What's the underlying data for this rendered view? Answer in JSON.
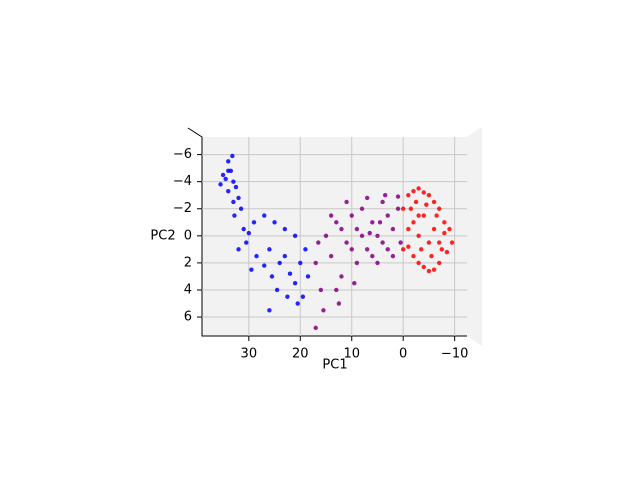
{
  "chart_data": {
    "type": "scatter",
    "xlabel": "PC1",
    "ylabel": "PC2",
    "xlim": [
      39.1,
      -12.4
    ],
    "ylim": [
      -7.3,
      7.4
    ],
    "xticks": [
      30,
      20,
      10,
      0,
      {
        "value": -10,
        "label": "−10"
      }
    ],
    "yticks": [
      {
        "value": -6,
        "label": "−6"
      },
      {
        "value": -4,
        "label": "−4"
      },
      {
        "value": -2,
        "label": "−2"
      },
      0,
      2,
      4,
      6
    ],
    "grid": true,
    "series": [
      {
        "color": "#0000ff",
        "x": [
          34,
          33.5,
          34.5,
          33,
          35,
          32.5,
          34,
          33.2,
          35.5,
          32,
          31.5,
          32.8,
          31,
          30.5,
          32,
          29,
          30,
          28.5,
          27,
          26,
          25.5,
          24,
          23,
          22,
          21,
          20,
          24.5,
          22.5,
          20.5,
          21,
          19,
          18.5,
          25,
          27,
          26,
          19.5,
          23,
          29.5,
          33,
          34
        ],
        "values": [
          -5.5,
          -4.8,
          -4.2,
          -4.0,
          -4.5,
          -3.6,
          -3.3,
          -5.9,
          -3.8,
          -2.8,
          -2,
          -1.5,
          -0.5,
          0.5,
          1,
          -1,
          -0.2,
          1.5,
          2.2,
          1,
          3,
          2,
          1.5,
          2.8,
          3.5,
          2,
          4,
          4.5,
          5,
          0,
          1,
          3,
          -1,
          -1.5,
          5.5,
          4.5,
          -0.5,
          2.5,
          -2.5,
          -4.8
        ]
      },
      {
        "color": "#800080",
        "x": [
          17,
          16,
          15,
          14,
          13,
          12,
          11,
          10,
          9,
          8,
          7,
          6,
          5,
          4,
          3,
          2,
          1,
          0.5,
          15.5,
          13,
          11,
          9,
          7,
          5,
          3,
          2,
          1,
          10,
          8,
          6,
          4,
          12,
          14,
          16.5,
          12.5,
          17,
          9.5,
          6.5,
          4.5,
          3.5
        ],
        "values": [
          2,
          4,
          0,
          1.5,
          -1,
          3,
          0.5,
          -1.5,
          2,
          -2,
          1,
          -1,
          0,
          -2.5,
          1,
          -0.5,
          -2,
          0.5,
          5.5,
          4,
          -2.5,
          -0.5,
          -2.8,
          2,
          -1.5,
          1.5,
          -2.9,
          1,
          0,
          1.5,
          0.5,
          -0.5,
          -1.5,
          0.5,
          5,
          6.8,
          3.5,
          -0.2,
          -1,
          -3
        ]
      },
      {
        "color": "#ff0000",
        "x": [
          0,
          -1,
          -2,
          -3,
          -4,
          -5,
          -6,
          -7,
          -8,
          -9,
          -9.5,
          -8.5,
          -7,
          -6,
          -5,
          -4,
          -3,
          -2,
          -1,
          0,
          -2,
          -3,
          -4,
          -5,
          -6,
          -7,
          -3.5,
          -1.5,
          -5.5,
          -8,
          -2.5,
          -6.5,
          -4.5,
          -1,
          -7.5,
          -3
        ],
        "values": [
          -2,
          -3,
          -3.3,
          -3.5,
          -3.2,
          -3,
          -2.5,
          -2,
          -1,
          -0.5,
          0.5,
          1.2,
          2,
          2.5,
          2.6,
          2.3,
          2,
          1.5,
          0.8,
          1,
          -1,
          0,
          -1.5,
          0.5,
          -0.5,
          0.5,
          1,
          -2,
          1.5,
          -0.2,
          -2.5,
          -1.5,
          -2.3,
          -0.5,
          1,
          -1.5
        ]
      }
    ]
  }
}
